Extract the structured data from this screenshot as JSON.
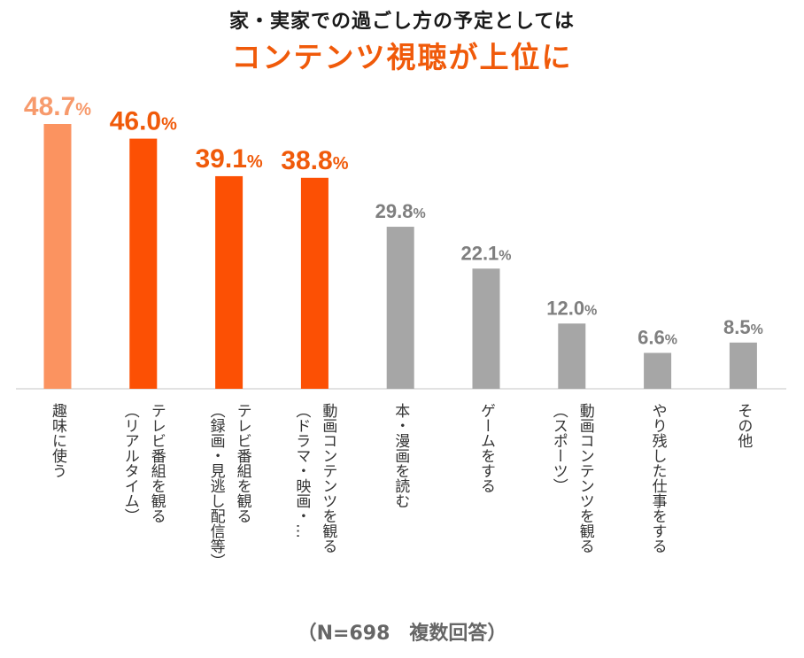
{
  "header": {
    "title_line1": "家・実家での過ごし方の予定としては",
    "title_line2": "コンテンツ視聴が上位に"
  },
  "footer": {
    "note": "（N=698　複数回答）"
  },
  "chart_data": {
    "type": "bar",
    "title": "家・実家での過ごし方の予定としては コンテンツ視聴が上位に",
    "unit": "%",
    "categories": [
      [
        "趣味に使う"
      ],
      [
        "テレビ番組を観る",
        "（リアルタイム）"
      ],
      [
        "テレビ番組を観る",
        "（録画・見逃し配信等）"
      ],
      [
        "動画コンテンツを観る",
        "（ドラマ・映画・…"
      ],
      [
        "本・漫画を読む"
      ],
      [
        "ゲームをする"
      ],
      [
        "動画コンテンツを観る",
        "（スポーツ）"
      ],
      [
        "やり残した仕事をする"
      ],
      [
        "その他"
      ]
    ],
    "values": [
      48.7,
      46.0,
      39.1,
      38.8,
      29.8,
      22.1,
      12.0,
      6.6,
      8.5
    ],
    "value_labels": [
      "48.7",
      "46.0",
      "39.1",
      "38.8",
      "29.8",
      "22.1",
      "12.0",
      "6.6",
      "8.5"
    ],
    "percent_sign": "%",
    "ylim": [
      0,
      50
    ],
    "colors": {
      "top": "#fb9360",
      "highlight": "#fc5004",
      "other": "#a6a6a6",
      "top_label": "#f79a6c",
      "highlight_label": "#f05a0a",
      "other_label": "#7f7f7f",
      "axis": "#d9d9d9"
    },
    "bar_colors": [
      "top",
      "highlight",
      "highlight",
      "highlight",
      "other",
      "other",
      "other",
      "other",
      "other"
    ],
    "grid": false,
    "legend": "none"
  }
}
